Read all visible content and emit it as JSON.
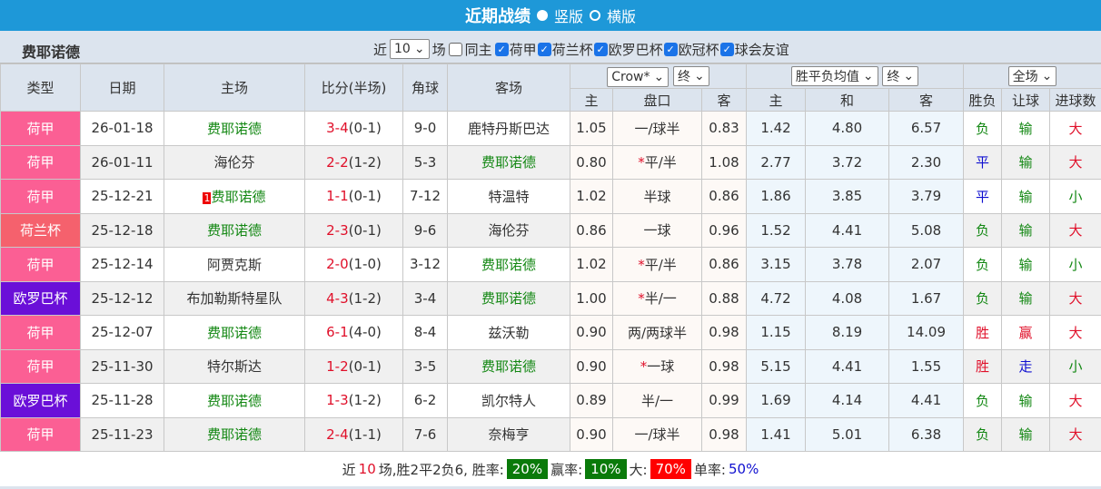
{
  "header": {
    "title": "近期战绩",
    "view_vertical": "竖版",
    "view_horizontal": "横版"
  },
  "team": "费耶诺德",
  "filters": {
    "recent_prefix": "近",
    "recent_count": "10",
    "recent_suffix": "场",
    "same_home": "同主",
    "leagues": [
      "荷甲",
      "荷兰杯",
      "欧罗巴杯",
      "欧冠杯",
      "球会友谊"
    ]
  },
  "columns": {
    "type": "类型",
    "date": "日期",
    "home": "主场",
    "score": "比分(半场)",
    "corner": "角球",
    "away": "客场",
    "ah_company": "Crow*",
    "ah_stage": "终",
    "eu_company": "胜平负均值",
    "eu_stage": "终",
    "period": "全场",
    "sub": [
      "主",
      "盘口",
      "客",
      "主",
      "和",
      "客",
      "胜负",
      "让球",
      "进球数"
    ]
  },
  "colors": {
    "荷甲": "#fb5f94",
    "荷兰杯": "#f5616d",
    "欧罗巴杯": "#6a0fd8"
  },
  "rows": [
    [
      "荷甲",
      "26-01-18",
      "费耶诺德",
      "",
      "3-4",
      "(0-1)",
      "9-0",
      "鹿特丹斯巴达",
      "1.05",
      "",
      "一/球半",
      "0.83",
      "1.42",
      "4.80",
      "6.57",
      "负",
      "输",
      "大"
    ],
    [
      "荷甲",
      "26-01-11",
      "海伦芬",
      "",
      "2-2",
      "(1-2)",
      "5-3",
      "费耶诺德",
      "0.80",
      "*",
      "平/半",
      "1.08",
      "2.77",
      "3.72",
      "2.30",
      "平",
      "输",
      "大"
    ],
    [
      "荷甲",
      "25-12-21",
      "费耶诺德",
      "1",
      "1-1",
      "(0-1)",
      "7-12",
      "特温特",
      "1.02",
      "",
      "半球",
      "0.86",
      "1.86",
      "3.85",
      "3.79",
      "平",
      "输",
      "小"
    ],
    [
      "荷兰杯",
      "25-12-18",
      "费耶诺德",
      "",
      "2-3",
      "(0-1)",
      "9-6",
      "海伦芬",
      "0.86",
      "",
      "一球",
      "0.96",
      "1.52",
      "4.41",
      "5.08",
      "负",
      "输",
      "大"
    ],
    [
      "荷甲",
      "25-12-14",
      "阿贾克斯",
      "",
      "2-0",
      "(1-0)",
      "3-12",
      "费耶诺德",
      "1.02",
      "*",
      "平/半",
      "0.86",
      "3.15",
      "3.78",
      "2.07",
      "负",
      "输",
      "小"
    ],
    [
      "欧罗巴杯",
      "25-12-12",
      "布加勒斯特星队",
      "",
      "4-3",
      "(1-2)",
      "3-4",
      "费耶诺德",
      "1.00",
      "*",
      "半/一",
      "0.88",
      "4.72",
      "4.08",
      "1.67",
      "负",
      "输",
      "大"
    ],
    [
      "荷甲",
      "25-12-07",
      "费耶诺德",
      "",
      "6-1",
      "(4-0)",
      "8-4",
      "兹沃勒",
      "0.90",
      "",
      "两/两球半",
      "0.98",
      "1.15",
      "8.19",
      "14.09",
      "胜",
      "赢",
      "大"
    ],
    [
      "荷甲",
      "25-11-30",
      "特尔斯达",
      "",
      "1-2",
      "(0-1)",
      "3-5",
      "费耶诺德",
      "0.90",
      "*",
      "一球",
      "0.98",
      "5.15",
      "4.41",
      "1.55",
      "胜",
      "走",
      "小"
    ],
    [
      "欧罗巴杯",
      "25-11-28",
      "费耶诺德",
      "",
      "1-3",
      "(1-2)",
      "6-2",
      "凯尔特人",
      "0.89",
      "",
      "半/一",
      "0.99",
      "1.69",
      "4.14",
      "4.41",
      "负",
      "输",
      "大"
    ],
    [
      "荷甲",
      "25-11-23",
      "费耶诺德",
      "",
      "2-4",
      "(1-1)",
      "7-6",
      "奈梅亨",
      "0.90",
      "",
      "一/球半",
      "0.98",
      "1.41",
      "5.01",
      "6.38",
      "负",
      "输",
      "大"
    ]
  ],
  "summary": {
    "prefix": "近",
    "count": "10",
    "text": "场,胜2平2负6, 胜率:",
    "win_rate": "20%",
    "cover_label": "赢率:",
    "cover_rate": "10%",
    "over_label": "大:",
    "over_rate": "70%",
    "odd_label": "单率:",
    "odd_rate": "50%"
  }
}
